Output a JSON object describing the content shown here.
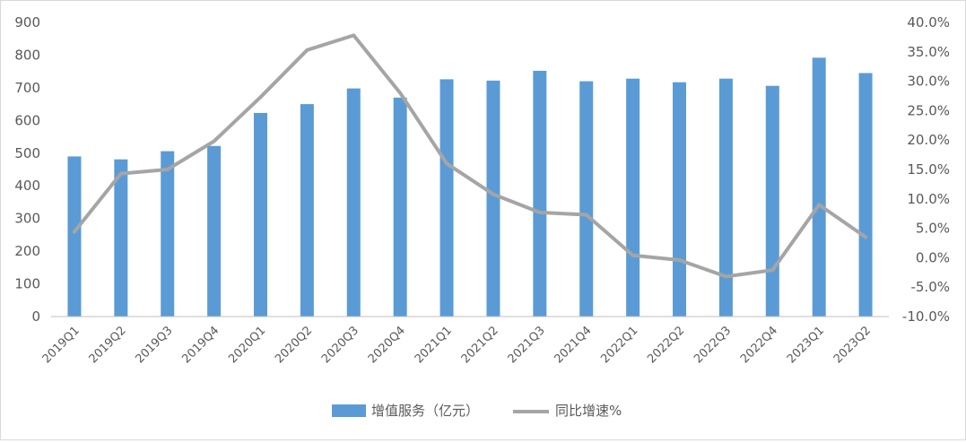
{
  "chart_data": {
    "type": "bar+line",
    "categories": [
      "2019Q1",
      "2019Q2",
      "2019Q3",
      "2019Q4",
      "2020Q1",
      "2020Q2",
      "2020Q3",
      "2020Q4",
      "2021Q1",
      "2021Q2",
      "2021Q3",
      "2021Q4",
      "2022Q1",
      "2022Q2",
      "2022Q3",
      "2022Q4",
      "2023Q1",
      "2023Q2"
    ],
    "series": [
      {
        "name": "增值服务（亿元）",
        "type": "bar",
        "axis": "left",
        "color": "#5b9bd5",
        "values": [
          490,
          481,
          506,
          522,
          623,
          650,
          698,
          670,
          726,
          722,
          752,
          720,
          728,
          717,
          728,
          706,
          792,
          745
        ]
      },
      {
        "name": "同比增速%",
        "type": "line",
        "axis": "right",
        "color": "#a5a5a5",
        "values": [
          4.4,
          14.3,
          15.0,
          19.8,
          27.3,
          35.3,
          37.8,
          28.0,
          16.0,
          10.8,
          7.7,
          7.3,
          0.4,
          -0.4,
          -3.2,
          -2.1,
          9.0,
          3.5
        ]
      }
    ],
    "y_left": {
      "min": 0,
      "max": 900,
      "ticks": [
        "0",
        "100",
        "200",
        "300",
        "400",
        "500",
        "600",
        "700",
        "800",
        "900"
      ]
    },
    "y_right": {
      "min": -10,
      "max": 40,
      "ticks": [
        "-10.0%",
        "-5.0%",
        "0.0%",
        "5.0%",
        "10.0%",
        "15.0%",
        "20.0%",
        "25.0%",
        "30.0%",
        "35.0%",
        "40.0%"
      ]
    },
    "legend_position": "bottom-center",
    "grid": false
  }
}
